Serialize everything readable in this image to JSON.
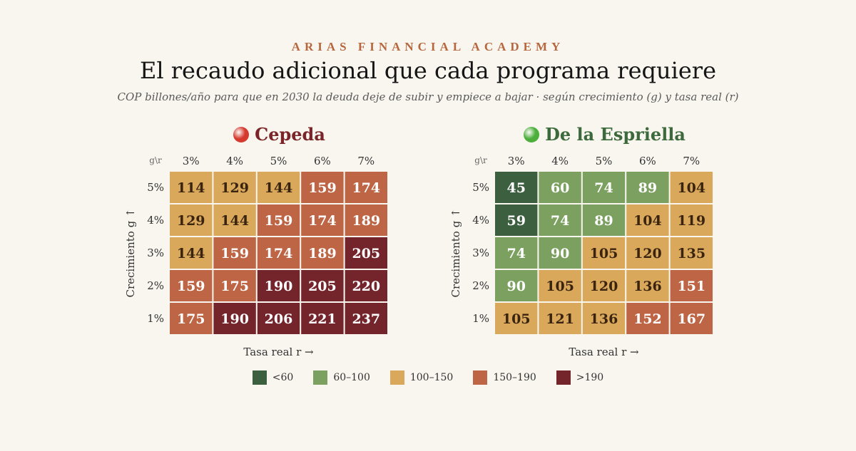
{
  "header": {
    "brand": "ARIAS FINANCIAL ACADEMY",
    "title": "El recaudo adicional que cada programa requiere",
    "subtitle": "COP billones/año para que en 2030 la deuda deje de subir y empiece a bajar · según crecimiento (g) y tasa real (r)"
  },
  "chart_data": [
    {
      "type": "heatmap",
      "title": "Cepeda",
      "title_color": "#7a2529",
      "dot_color": "#d63a2f",
      "corner_label": "g\\r",
      "x_categories": [
        "3%",
        "4%",
        "5%",
        "6%",
        "7%"
      ],
      "y_categories": [
        "5%",
        "4%",
        "3%",
        "2%",
        "1%"
      ],
      "xlabel": "Tasa real r →",
      "ylabel": "Crecimiento g ↑",
      "values": [
        [
          114,
          129,
          144,
          159,
          174
        ],
        [
          129,
          144,
          159,
          174,
          189
        ],
        [
          144,
          159,
          174,
          189,
          205
        ],
        [
          159,
          175,
          190,
          205,
          220
        ],
        [
          175,
          190,
          206,
          221,
          237
        ]
      ]
    },
    {
      "type": "heatmap",
      "title": "De la Espriella",
      "title_color": "#3c6a3c",
      "dot_color": "#4caf3c",
      "corner_label": "g\\r",
      "x_categories": [
        "3%",
        "4%",
        "5%",
        "6%",
        "7%"
      ],
      "y_categories": [
        "5%",
        "4%",
        "3%",
        "2%",
        "1%"
      ],
      "xlabel": "Tasa real r →",
      "ylabel": "Crecimiento g ↑",
      "values": [
        [
          45,
          60,
          74,
          89,
          104
        ],
        [
          59,
          74,
          89,
          104,
          119
        ],
        [
          74,
          90,
          105,
          120,
          135
        ],
        [
          90,
          105,
          120,
          136,
          151
        ],
        [
          105,
          121,
          136,
          152,
          167
        ]
      ]
    }
  ],
  "legend": [
    {
      "label": "<60",
      "color": "#3c5f40",
      "min": 0,
      "max": 60,
      "text_color": "#ffffff"
    },
    {
      "label": "60–100",
      "color": "#7ba060",
      "min": 60,
      "max": 100,
      "text_color": "#ffffff"
    },
    {
      "label": "100–150",
      "color": "#d9a85a",
      "min": 100,
      "max": 150,
      "text_color": "#3a2410"
    },
    {
      "label": "150–190",
      "color": "#bd6544",
      "min": 150,
      "max": 190,
      "text_color": "#ffffff"
    },
    {
      "label": ">190",
      "color": "#74242b",
      "min": 190,
      "max": 100000,
      "text_color": "#ffffff"
    }
  ]
}
